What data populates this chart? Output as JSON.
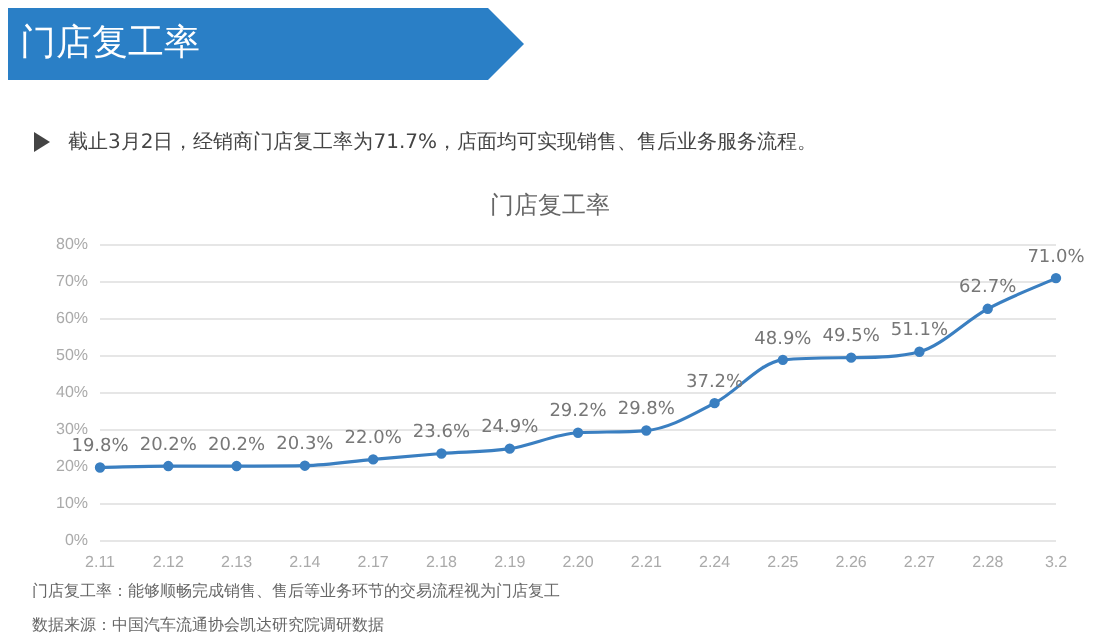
{
  "chart_data": {
    "type": "line",
    "title": "门店复工率",
    "subtitle": "截止3月2日，经销商门店复工率为71.7%，店面均可实现销售、售后业务服务流程。",
    "annotations": [
      "门店复工率",
      "门店复工率：能够顺畅完成销售、售后等业务环节的交易流程视为门店复工",
      "数据来源：中国汽车流通协会凯达研究院调研数据"
    ],
    "categories": [
      "2.11",
      "2.12",
      "2.13",
      "2.14",
      "2.17",
      "2.18",
      "2.19",
      "2.20",
      "2.21",
      "2.24",
      "2.25",
      "2.26",
      "2.27",
      "2.28",
      "3.2"
    ],
    "series": [
      {
        "color": "#3a7fc1",
        "values": [
          19.8,
          20.2,
          20.2,
          20.3,
          22.0,
          23.6,
          24.9,
          29.2,
          29.8,
          37.2,
          48.9,
          49.5,
          51.1,
          62.7,
          71.0
        ],
        "value_labels": [
          "19.8%",
          "20.2%",
          "20.2%",
          "20.3%",
          "22.0%",
          "23.6%",
          "24.9%",
          "29.2%",
          "29.8%",
          "37.2%",
          "48.9%",
          "49.5%",
          "51.1%",
          "62.7%",
          "71.0%"
        ]
      }
    ],
    "ylim": [
      0,
      80
    ],
    "yticks": [
      {
        "value": 0,
        "label": "0%"
      },
      {
        "value": 10,
        "label": "10%"
      },
      {
        "value": 20,
        "label": "20%"
      },
      {
        "value": 30,
        "label": "30%"
      },
      {
        "value": 40,
        "label": "40%"
      },
      {
        "value": 50,
        "label": "50%"
      },
      {
        "value": 60,
        "label": "60%"
      },
      {
        "value": 70,
        "label": "70%"
      },
      {
        "value": 80,
        "label": "80%"
      }
    ],
    "grid": "y",
    "legend": false,
    "marker": "circle",
    "line_style": "solid"
  }
}
